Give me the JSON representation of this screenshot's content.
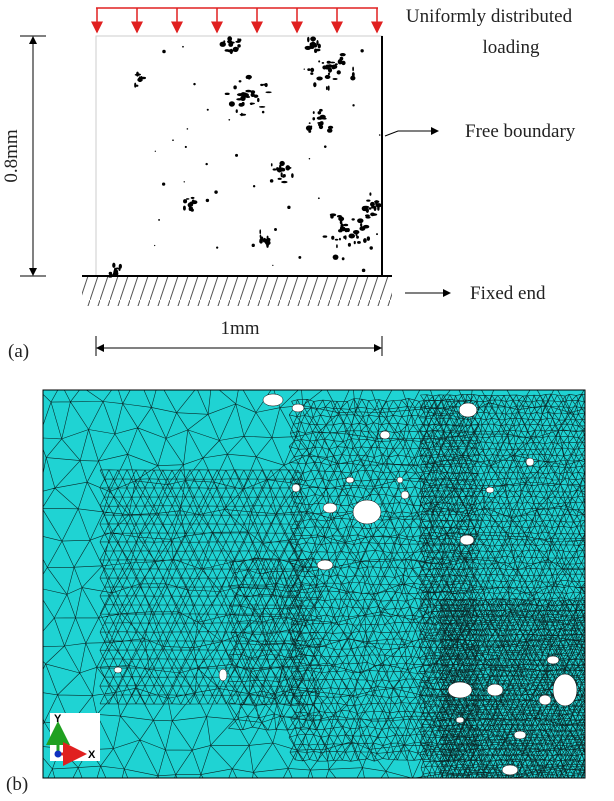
{
  "panel_a": {
    "label": "(a)",
    "load_label": [
      "Uniformly distributed",
      "loading"
    ],
    "free_boundary": "Free boundary",
    "fixed_end": "Fixed end",
    "height": "0.8mm",
    "width": "1mm"
  },
  "panel_b": {
    "label": "(b)",
    "axis_y": "Y",
    "axis_x": "X"
  }
}
